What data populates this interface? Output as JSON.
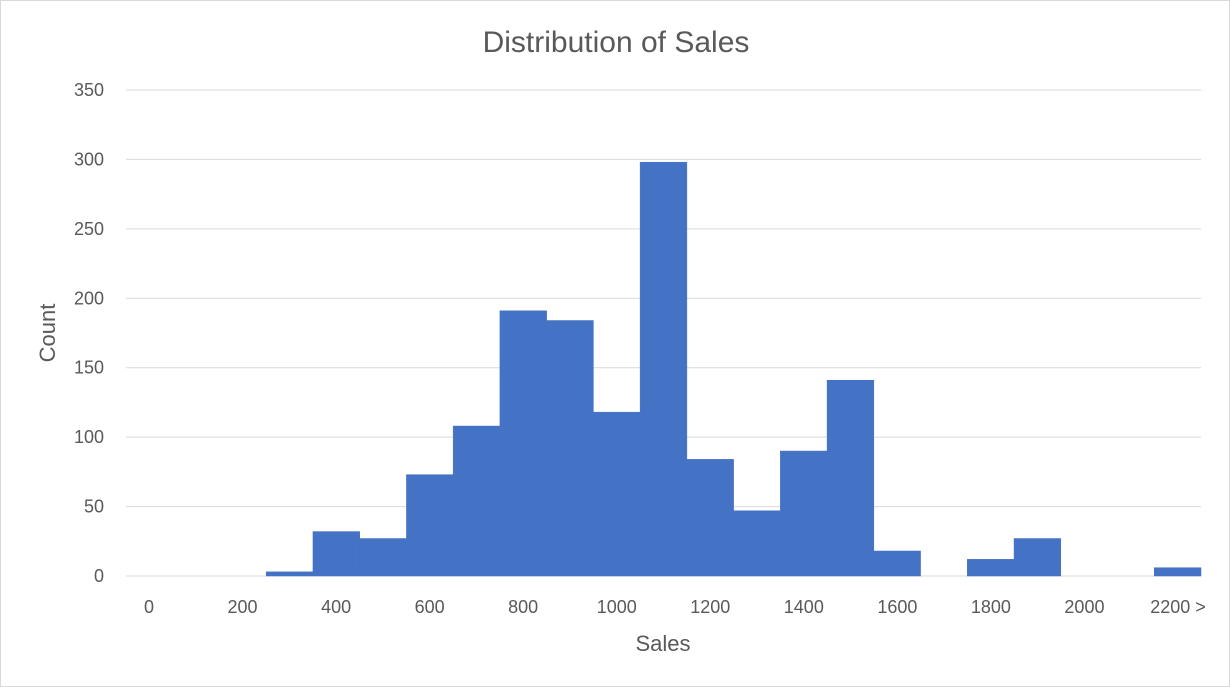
{
  "chart_data": {
    "type": "bar",
    "title": "Distribution of Sales",
    "xlabel": "Sales",
    "ylabel": "Count",
    "ylim": [
      0,
      350
    ],
    "yticks": [
      0,
      50,
      100,
      150,
      200,
      250,
      300,
      350
    ],
    "xtick_labels": [
      "0",
      "200",
      "400",
      "600",
      "800",
      "1000",
      "1200",
      "1400",
      "1600",
      "1800",
      "2000",
      "2200 >"
    ],
    "bins": [
      {
        "start": 0,
        "end": 100,
        "value": 0
      },
      {
        "start": 100,
        "end": 200,
        "value": 0
      },
      {
        "start": 200,
        "end": 300,
        "value": 0
      },
      {
        "start": 300,
        "end": 400,
        "value": 3
      },
      {
        "start": 400,
        "end": 500,
        "value": 32
      },
      {
        "start": 500,
        "end": 600,
        "value": 27
      },
      {
        "start": 600,
        "end": 700,
        "value": 73
      },
      {
        "start": 700,
        "end": 800,
        "value": 108
      },
      {
        "start": 800,
        "end": 900,
        "value": 191
      },
      {
        "start": 900,
        "end": 1000,
        "value": 184
      },
      {
        "start": 1000,
        "end": 1100,
        "value": 118
      },
      {
        "start": 1100,
        "end": 1200,
        "value": 298
      },
      {
        "start": 1200,
        "end": 1300,
        "value": 84
      },
      {
        "start": 1300,
        "end": 1400,
        "value": 47
      },
      {
        "start": 1400,
        "end": 1500,
        "value": 90
      },
      {
        "start": 1500,
        "end": 1600,
        "value": 141
      },
      {
        "start": 1600,
        "end": 1700,
        "value": 18
      },
      {
        "start": 1700,
        "end": 1800,
        "value": 0
      },
      {
        "start": 1800,
        "end": 1900,
        "value": 12
      },
      {
        "start": 1900,
        "end": 2000,
        "value": 27
      },
      {
        "start": 2000,
        "end": 2100,
        "value": 0
      },
      {
        "start": 2100,
        "end": 2200,
        "value": 0
      },
      {
        "start": 2200,
        "end": 2300,
        "value": 6
      }
    ],
    "grid": true,
    "bar_color": "#4472c4"
  }
}
